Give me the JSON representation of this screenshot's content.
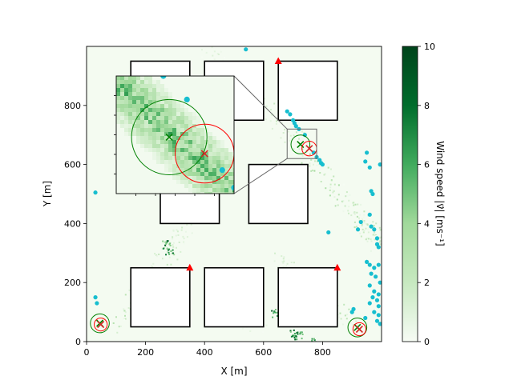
{
  "chart_data": {
    "type": "heatmap",
    "xlabel": "X [m]",
    "ylabel": "Y [m]",
    "xlim": [
      0,
      1000
    ],
    "ylim": [
      0,
      1000
    ],
    "xticks": [
      0,
      200,
      400,
      600,
      800
    ],
    "yticks": [
      0,
      200,
      400,
      600,
      800
    ],
    "colorbar": {
      "label": "Wind speed |v⃗| [ms⁻¹]",
      "min": 0,
      "max": 10,
      "ticks": [
        0,
        2,
        4,
        6,
        8,
        10
      ],
      "colors": [
        "#f7fcf5",
        "#00441b"
      ]
    },
    "buildings": [
      {
        "x0": 150,
        "y0": 50,
        "x1": 350,
        "y1": 250
      },
      {
        "x0": 400,
        "y0": 50,
        "x1": 600,
        "y1": 250
      },
      {
        "x0": 650,
        "y0": 50,
        "x1": 850,
        "y1": 250
      },
      {
        "x0": 250,
        "y0": 400,
        "x1": 450,
        "y1": 600
      },
      {
        "x0": 550,
        "y0": 400,
        "x1": 750,
        "y1": 600
      },
      {
        "x0": 150,
        "y0": 750,
        "x1": 350,
        "y1": 950
      },
      {
        "x0": 400,
        "y0": 750,
        "x1": 600,
        "y1": 950
      },
      {
        "x0": 650,
        "y0": 750,
        "x1": 850,
        "y1": 950
      }
    ],
    "source_markers": [
      {
        "x": 650,
        "y": 950
      },
      {
        "x": 350,
        "y": 250
      },
      {
        "x": 850,
        "y": 250
      }
    ],
    "green_estimates": [
      {
        "x": 45,
        "y": 62,
        "r": 32
      },
      {
        "x": 725,
        "y": 668,
        "r": 32
      },
      {
        "x": 918,
        "y": 48,
        "r": 32
      }
    ],
    "red_estimates": [
      {
        "x": 48,
        "y": 58,
        "r": 22
      },
      {
        "x": 755,
        "y": 654,
        "r": 25
      },
      {
        "x": 925,
        "y": 42,
        "r": 22
      }
    ],
    "particles": [
      [
        540,
        990
      ],
      [
        30,
        505
      ],
      [
        30,
        150
      ],
      [
        35,
        130
      ],
      [
        680,
        780
      ],
      [
        690,
        770
      ],
      [
        700,
        750
      ],
      [
        705,
        740
      ],
      [
        710,
        730
      ],
      [
        720,
        720
      ],
      [
        740,
        700
      ],
      [
        770,
        640
      ],
      [
        780,
        625
      ],
      [
        790,
        615
      ],
      [
        795,
        605
      ],
      [
        800,
        600
      ],
      [
        820,
        370
      ],
      [
        900,
        100
      ],
      [
        905,
        110
      ],
      [
        945,
        610
      ],
      [
        950,
        640
      ],
      [
        960,
        590
      ],
      [
        965,
        510
      ],
      [
        970,
        500
      ],
      [
        960,
        430
      ],
      [
        965,
        390
      ],
      [
        975,
        380
      ],
      [
        985,
        350
      ],
      [
        985,
        330
      ],
      [
        990,
        320
      ],
      [
        950,
        270
      ],
      [
        960,
        260
      ],
      [
        975,
        250
      ],
      [
        990,
        260
      ],
      [
        965,
        230
      ],
      [
        980,
        220
      ],
      [
        995,
        200
      ],
      [
        960,
        190
      ],
      [
        975,
        170
      ],
      [
        990,
        160
      ],
      [
        970,
        150
      ],
      [
        985,
        140
      ],
      [
        960,
        130
      ],
      [
        990,
        120
      ],
      [
        975,
        100
      ],
      [
        990,
        90
      ],
      [
        985,
        70
      ],
      [
        995,
        60
      ],
      [
        945,
        80
      ],
      [
        995,
        600
      ],
      [
        920,
        380
      ],
      [
        930,
        405
      ]
    ],
    "inset": {
      "xlim": [
        680,
        780
      ],
      "ylim": [
        620,
        720
      ]
    }
  }
}
